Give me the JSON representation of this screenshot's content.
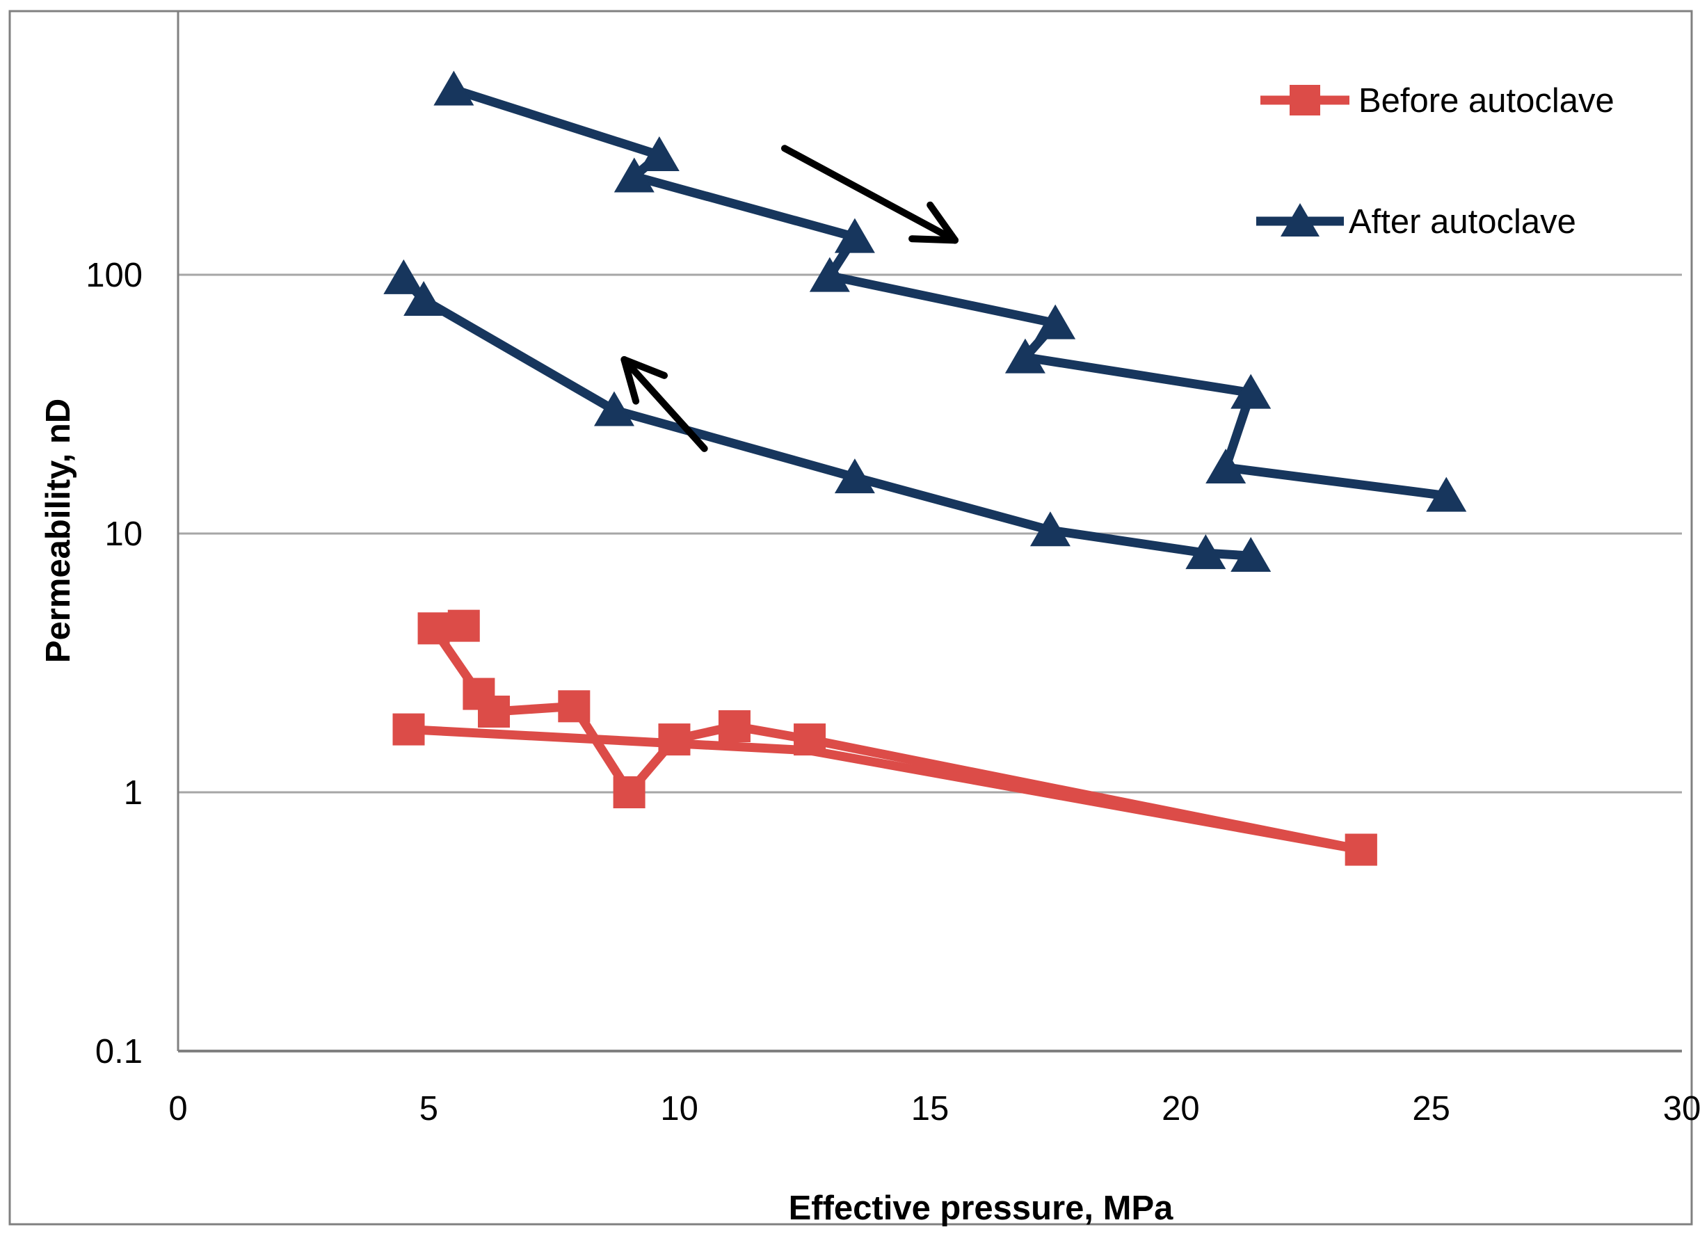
{
  "chart_data": {
    "type": "line",
    "title": "",
    "xlabel": "Effective pressure, MPa",
    "ylabel": "Permeability, nD",
    "x_axis": {
      "min": 0,
      "max": 30,
      "ticks": [
        0,
        5,
        10,
        15,
        20,
        25,
        30
      ],
      "scale": "linear"
    },
    "y_axis": {
      "min": 0.1,
      "max": 1000,
      "ticks": [
        100,
        10,
        1,
        0.1
      ],
      "scale": "log"
    },
    "grid": "horizontal",
    "legend_position": "top-right",
    "series": [
      {
        "name": "Before autoclave",
        "color": "#DC4C48",
        "marker": "square",
        "paths": [
          {
            "label": "loading",
            "markers": "all",
            "points": [
              [
                5.7,
                4.4
              ],
              [
                5.1,
                4.3
              ],
              [
                6.0,
                2.4
              ],
              [
                6.3,
                2.05
              ],
              [
                7.9,
                2.15
              ],
              [
                9.0,
                1.0
              ],
              [
                9.9,
                1.6
              ],
              [
                11.1,
                1.8
              ],
              [
                12.6,
                1.6
              ],
              [
                23.6,
                0.6
              ]
            ]
          },
          {
            "label": "unloading",
            "markers": "ends",
            "points": [
              [
                23.6,
                0.6
              ],
              [
                12.6,
                1.45
              ],
              [
                4.6,
                1.75
              ]
            ]
          }
        ]
      },
      {
        "name": "After autoclave",
        "color": "#17365D",
        "marker": "triangle",
        "paths": [
          {
            "label": "loading",
            "markers": "all",
            "points": [
              [
                5.5,
                520
              ],
              [
                9.6,
                290
              ],
              [
                9.1,
                240
              ],
              [
                13.5,
                140
              ],
              [
                13.0,
                99
              ],
              [
                17.5,
                65
              ],
              [
                16.9,
                48
              ],
              [
                21.4,
                35
              ],
              [
                20.9,
                18
              ],
              [
                25.3,
                14
              ]
            ]
          },
          {
            "label": "unloading",
            "markers": "all",
            "points": [
              [
                21.4,
                8.2
              ],
              [
                20.5,
                8.4
              ],
              [
                17.4,
                10.3
              ],
              [
                13.5,
                16.5
              ],
              [
                8.7,
                30
              ],
              [
                4.9,
                80
              ],
              [
                4.5,
                97
              ]
            ]
          }
        ]
      }
    ],
    "annotations": {
      "arrows": [
        {
          "name": "loading-direction-arrow",
          "from": [
            12.1,
            308
          ],
          "to": [
            15.5,
            136
          ]
        },
        {
          "name": "unloading-direction-arrow",
          "from": [
            10.5,
            21.3
          ],
          "to": [
            8.9,
            47
          ]
        }
      ],
      "arrow_color": "#000000"
    },
    "style": {
      "gridline_color": "#A6A6A6",
      "axis_line_color": "#808080",
      "border_color": "#808080",
      "background": "#ffffff"
    }
  }
}
